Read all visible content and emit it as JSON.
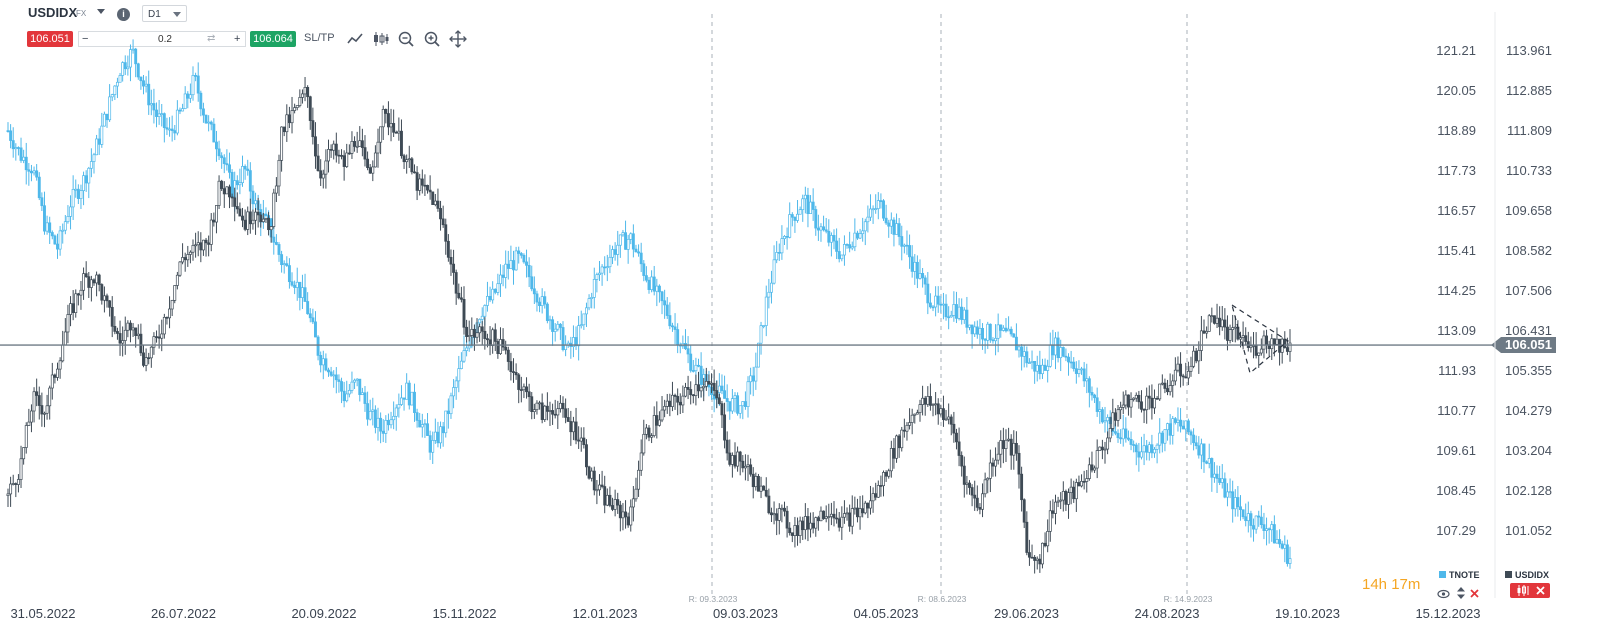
{
  "toolbar": {
    "symbol": "USDIDX",
    "symbol_type": "FX",
    "timeframe": "D1",
    "sell_price": "106.051",
    "buy_price": "106.064",
    "volume": "0.2",
    "sltp_label": "SL/TP",
    "minus": "−",
    "plus": "+",
    "info": "i"
  },
  "chart_data": {
    "type": "candlestick-overlay",
    "x_ticks": [
      "31.05.2022",
      "26.07.2022",
      "20.09.2022",
      "15.11.2022",
      "12.01.2023",
      "09.03.2023",
      "04.05.2023",
      "29.06.2023",
      "24.08.2023",
      "19.10.2023",
      "15.12.2023"
    ],
    "y_left_ticks": [
      "121.21",
      "120.05",
      "118.89",
      "117.73",
      "116.57",
      "115.41",
      "114.25",
      "113.09",
      "111.93",
      "110.77",
      "109.61",
      "108.45",
      "107.29"
    ],
    "y_right_ticks": [
      "113.961",
      "112.885",
      "111.809",
      "110.733",
      "109.658",
      "108.582",
      "107.506",
      "106.431",
      "105.355",
      "104.279",
      "103.204",
      "102.128",
      "101.052"
    ],
    "current_price": "106.051",
    "current_price_value": 106.051,
    "rollover_markers": [
      "R: 09.3.2023",
      "R: 08.6.2023",
      "R: 14.9.2023"
    ],
    "series": [
      {
        "name": "TNOTE",
        "color": "#4fb8ea",
        "axis": "left",
        "values": [
          118.9,
          118.2,
          117.8,
          116.1,
          115.5,
          116.8,
          117.4,
          118.3,
          119.5,
          120.7,
          121.2,
          120.1,
          119.3,
          118.8,
          119.5,
          120.4,
          119.1,
          118.4,
          117.2,
          117.8,
          116.6,
          116.1,
          115.1,
          114.6,
          113.8,
          112.4,
          112.0,
          111.2,
          111.6,
          110.7,
          110.2,
          110.9,
          111.4,
          110.6,
          109.7,
          110.3,
          111.6,
          112.8,
          113.7,
          114.1,
          114.9,
          115.2,
          114.6,
          113.8,
          113.2,
          112.5,
          113.1,
          114.4,
          115.1,
          115.6,
          115.8,
          114.9,
          114.2,
          113.6,
          112.8,
          112.1,
          111.6,
          111.3,
          111.0,
          110.9,
          111.9,
          114.1,
          115.6,
          116.4,
          116.9,
          116.2,
          115.7,
          115.3,
          115.9,
          116.3,
          116.8,
          116.2,
          115.6,
          114.8,
          114.1,
          113.6,
          113.8,
          113.4,
          113.1,
          113.0,
          113.0,
          112.7,
          112.2,
          111.9,
          112.7,
          112.4,
          112.0,
          111.3,
          110.6,
          110.1,
          109.9,
          109.6,
          109.8,
          110.2,
          110.4,
          110.1,
          109.6,
          108.9,
          108.3,
          107.9,
          107.6,
          107.5,
          107.0,
          106.5
        ]
      },
      {
        "name": "USDIDX",
        "color": "#3e4a55",
        "axis": "right",
        "values": [
          102.0,
          102.8,
          104.6,
          104.3,
          105.6,
          106.9,
          107.8,
          107.9,
          107.0,
          106.1,
          106.8,
          105.6,
          106.2,
          107.2,
          108.4,
          108.6,
          108.8,
          110.3,
          110.2,
          109.3,
          109.8,
          109.0,
          111.8,
          112.3,
          112.9,
          110.6,
          111.3,
          110.9,
          111.7,
          110.5,
          112.2,
          112.0,
          111.0,
          110.3,
          110.1,
          109.2,
          107.6,
          106.3,
          106.4,
          106.2,
          105.8,
          105.1,
          104.5,
          104.2,
          104.4,
          104.0,
          103.6,
          102.3,
          101.9,
          101.6,
          101.4,
          103.5,
          104.0,
          104.4,
          104.6,
          104.9,
          105.1,
          104.6,
          103.0,
          102.9,
          102.4,
          101.8,
          101.5,
          101.1,
          101.2,
          101.4,
          101.7,
          101.3,
          101.5,
          101.7,
          102.2,
          103.1,
          103.8,
          104.4,
          104.5,
          104.3,
          103.7,
          102.3,
          101.7,
          102.9,
          103.5,
          103.1,
          100.3,
          100.4,
          101.8,
          101.9,
          102.2,
          102.8,
          103.3,
          104.2,
          104.6,
          104.5,
          104.6,
          104.9,
          105.3,
          105.4,
          106.4,
          106.9,
          106.3,
          106.3,
          105.9,
          106.2,
          106.1,
          106.05
        ]
      }
    ],
    "legend": [
      "TNOTE",
      "USDIDX"
    ]
  },
  "countdown": {
    "hours": "14h",
    "minutes": "17m"
  },
  "legend": {
    "tnote": "TNOTE",
    "usdidx": "USDIDX"
  }
}
